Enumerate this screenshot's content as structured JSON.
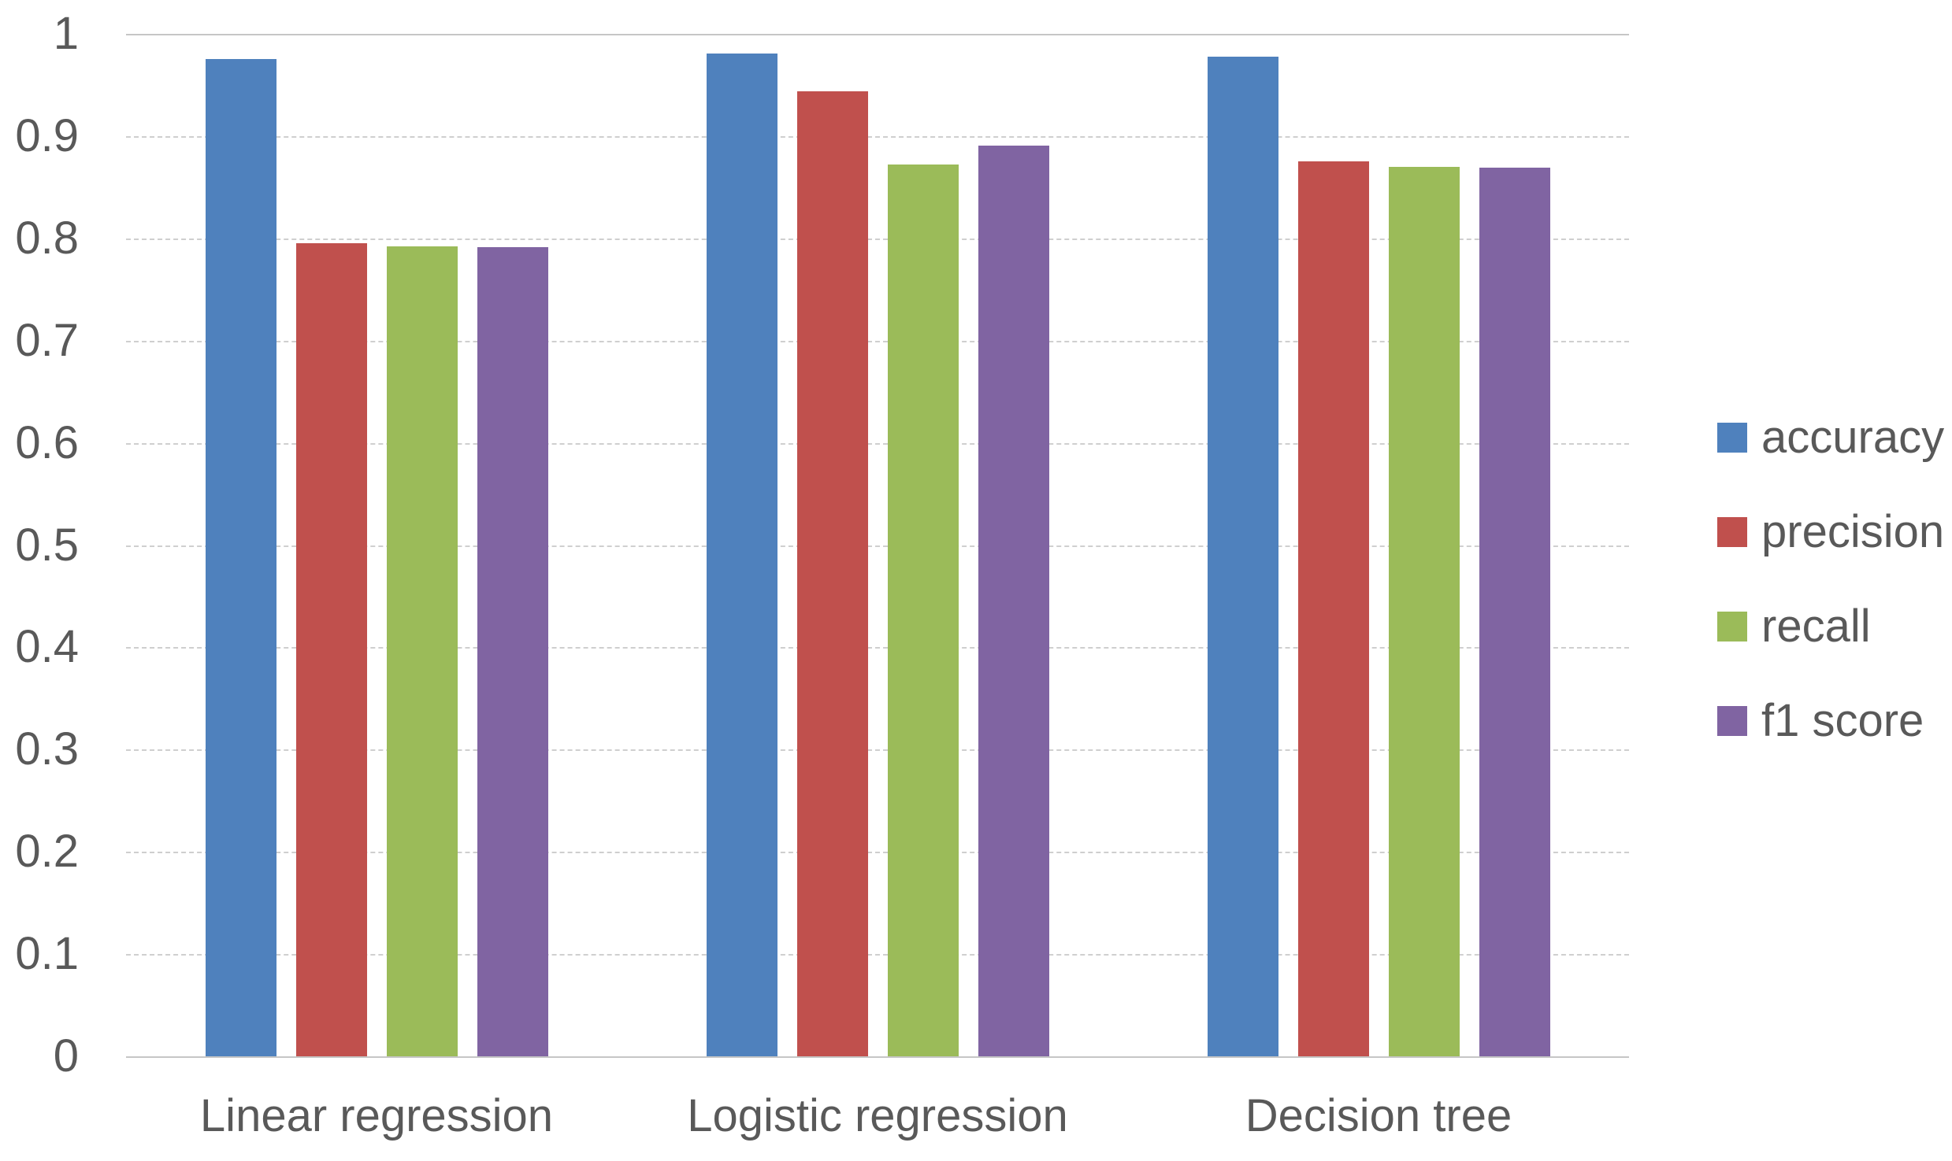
{
  "chart_data": {
    "type": "bar",
    "title": "",
    "categories": [
      "Linear regression",
      "Logistic regression",
      "Decision tree"
    ],
    "series": [
      {
        "name": "accuracy",
        "color": "#4F81BD",
        "values": [
          0.975,
          0.981,
          0.978
        ]
      },
      {
        "name": "precision",
        "color": "#C0504D",
        "values": [
          0.795,
          0.944,
          0.875
        ]
      },
      {
        "name": "recall",
        "color": "#9BBB59",
        "values": [
          0.792,
          0.872,
          0.87
        ]
      },
      {
        "name": "f1 score",
        "color": "#8064A2",
        "values": [
          0.791,
          0.891,
          0.869
        ]
      }
    ],
    "xlabel": "",
    "ylabel": "",
    "ylim": [
      0,
      1
    ],
    "yticks": [
      {
        "value": 1.0,
        "label": "1"
      },
      {
        "value": 0.9,
        "label": "0.9"
      },
      {
        "value": 0.8,
        "label": "0.8"
      },
      {
        "value": 0.7,
        "label": "0.7"
      },
      {
        "value": 0.6,
        "label": "0.6"
      },
      {
        "value": 0.5,
        "label": "0.5"
      },
      {
        "value": 0.4,
        "label": "0.4"
      },
      {
        "value": 0.3,
        "label": "0.3"
      },
      {
        "value": 0.2,
        "label": "0.2"
      },
      {
        "value": 0.1,
        "label": "0.1"
      },
      {
        "value": 0.0,
        "label": "0"
      }
    ],
    "grid": "horizontal",
    "legend_position": "right"
  },
  "colors": {
    "background": "#FFFFFF",
    "text": "#595959",
    "gridline": "#CFCFCF",
    "axis_line": "#C6C6C6"
  }
}
